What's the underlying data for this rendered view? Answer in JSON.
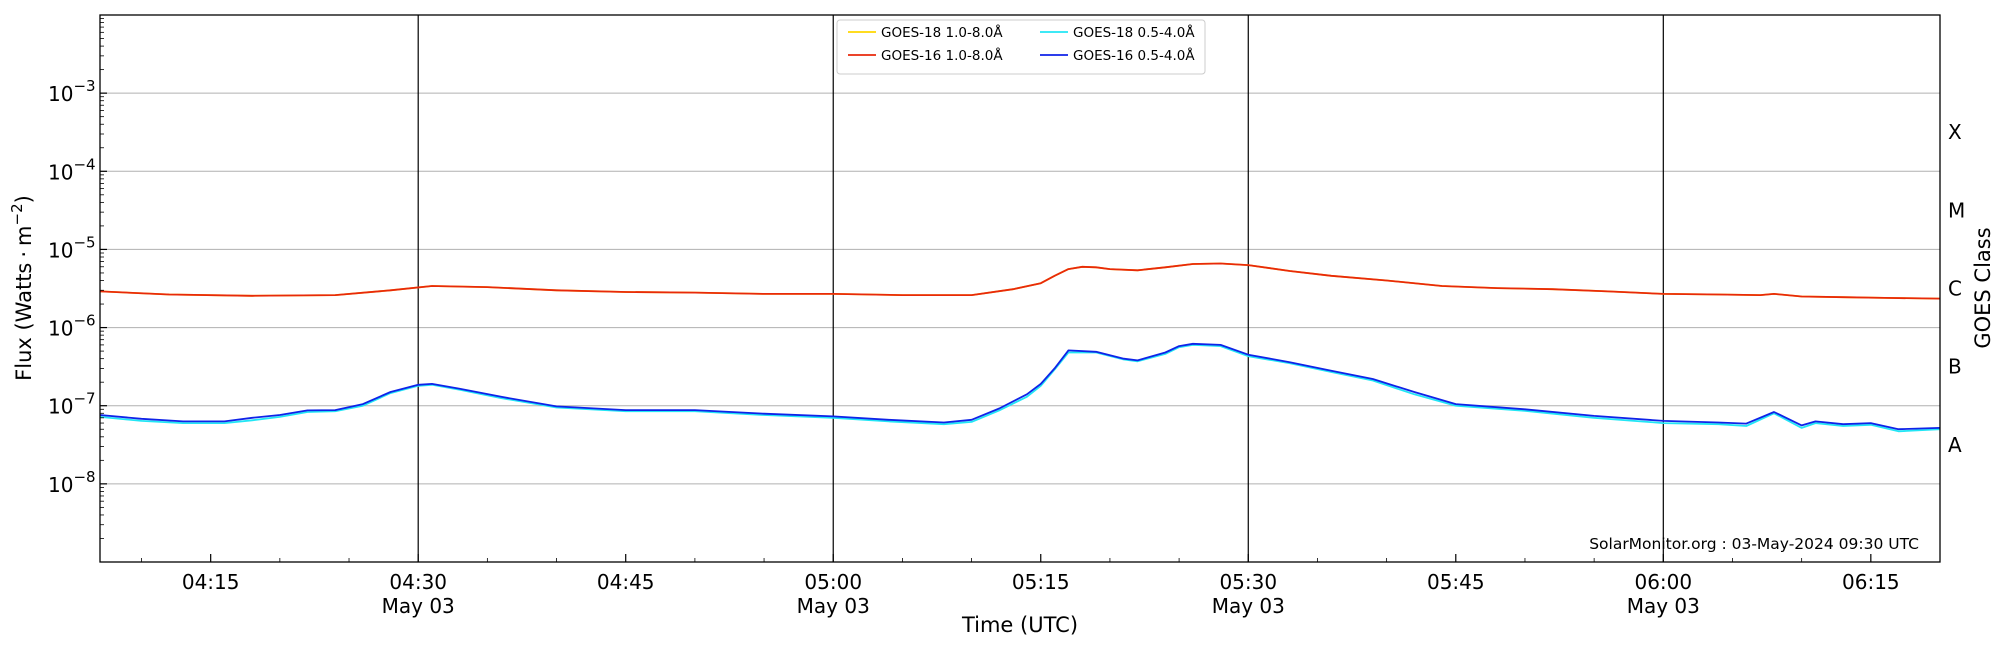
{
  "chart_data": {
    "type": "line",
    "title": "",
    "xlabel": "Time (UTC)",
    "ylabel_main": "Flux (Watts",
    "ylabel_unit": "m",
    "ylabel_exp": "−2",
    "ylabel_dot": "·",
    "y2label": "GOES Class",
    "y_scale": "log",
    "xlim": [
      "04:07",
      "06:20"
    ],
    "ylim": [
      1e-09,
      0.01
    ],
    "grid": "horizontal",
    "legend_position": "top-center",
    "watermark": "SolarMonitor.org : 03-May-2024 09:30 UTC",
    "x_ticks": [
      {
        "t": "04:15",
        "label": "04:15",
        "date": ""
      },
      {
        "t": "04:30",
        "label": "04:30",
        "date": "May 03"
      },
      {
        "t": "04:45",
        "label": "04:45",
        "date": ""
      },
      {
        "t": "05:00",
        "label": "05:00",
        "date": "May 03"
      },
      {
        "t": "05:15",
        "label": "05:15",
        "date": ""
      },
      {
        "t": "05:30",
        "label": "05:30",
        "date": "May 03"
      },
      {
        "t": "05:45",
        "label": "05:45",
        "date": ""
      },
      {
        "t": "06:00",
        "label": "06:00",
        "date": "May 03"
      },
      {
        "t": "06:15",
        "label": "06:15",
        "date": ""
      }
    ],
    "vlines": [
      "04:30",
      "05:00",
      "05:30",
      "06:00"
    ],
    "y_ticks": [
      {
        "exp": -8,
        "base": "10",
        "sup": "−8"
      },
      {
        "exp": -7,
        "base": "10",
        "sup": "−7"
      },
      {
        "exp": -6,
        "base": "10",
        "sup": "−6"
      },
      {
        "exp": -5,
        "base": "10",
        "sup": "−5"
      },
      {
        "exp": -4,
        "base": "10",
        "sup": "−4"
      },
      {
        "exp": -3,
        "base": "10",
        "sup": "−3"
      }
    ],
    "goes_classes": [
      {
        "label": "A",
        "exp": -7.5
      },
      {
        "label": "B",
        "exp": -6.5
      },
      {
        "label": "C",
        "exp": -5.5
      },
      {
        "label": "M",
        "exp": -4.5
      },
      {
        "label": "X",
        "exp": -3.5
      }
    ],
    "series": [
      {
        "name": "GOES-18 1.0-8.0Å",
        "color": "#ffd700",
        "x": [
          "04:07",
          "04:12",
          "04:18",
          "04:24",
          "04:28",
          "04:31",
          "04:35",
          "04:40",
          "04:45",
          "04:50",
          "04:55",
          "05:00",
          "05:05",
          "05:10",
          "05:13",
          "05:15",
          "05:16",
          "05:17",
          "05:18",
          "05:19",
          "05:20",
          "05:22",
          "05:24",
          "05:26",
          "05:28",
          "05:30",
          "05:33",
          "05:36",
          "05:40",
          "05:44",
          "05:48",
          "05:52",
          "05:56",
          "06:00",
          "06:04",
          "06:07",
          "06:08",
          "06:10",
          "06:13",
          "06:16",
          "06:20"
        ],
        "y": [
          2.9e-06,
          2.65e-06,
          2.55e-06,
          2.6e-06,
          3e-06,
          3.4e-06,
          3.3e-06,
          3e-06,
          2.85e-06,
          2.8e-06,
          2.7e-06,
          2.7e-06,
          2.6e-06,
          2.6e-06,
          3.1e-06,
          3.7e-06,
          4.6e-06,
          5.6e-06,
          6e-06,
          5.9e-06,
          5.6e-06,
          5.4e-06,
          5.9e-06,
          6.5e-06,
          6.6e-06,
          6.3e-06,
          5.3e-06,
          4.6e-06,
          4e-06,
          3.4e-06,
          3.2e-06,
          3.1e-06,
          2.9e-06,
          2.7e-06,
          2.65e-06,
          2.6e-06,
          2.7e-06,
          2.5e-06,
          2.45e-06,
          2.4e-06,
          2.35e-06
        ]
      },
      {
        "name": "GOES-16 1.0-8.0Å",
        "color": "#e8290b",
        "x": [
          "04:07",
          "04:12",
          "04:18",
          "04:24",
          "04:28",
          "04:31",
          "04:35",
          "04:40",
          "04:45",
          "04:50",
          "04:55",
          "05:00",
          "05:05",
          "05:10",
          "05:13",
          "05:15",
          "05:16",
          "05:17",
          "05:18",
          "05:19",
          "05:20",
          "05:22",
          "05:24",
          "05:26",
          "05:28",
          "05:30",
          "05:33",
          "05:36",
          "05:40",
          "05:44",
          "05:48",
          "05:52",
          "05:56",
          "06:00",
          "06:04",
          "06:07",
          "06:08",
          "06:10",
          "06:13",
          "06:16",
          "06:20"
        ],
        "y": [
          2.9e-06,
          2.65e-06,
          2.55e-06,
          2.6e-06,
          3e-06,
          3.4e-06,
          3.3e-06,
          3e-06,
          2.85e-06,
          2.8e-06,
          2.7e-06,
          2.7e-06,
          2.6e-06,
          2.6e-06,
          3.1e-06,
          3.7e-06,
          4.6e-06,
          5.6e-06,
          6e-06,
          5.9e-06,
          5.6e-06,
          5.4e-06,
          5.9e-06,
          6.5e-06,
          6.6e-06,
          6.3e-06,
          5.3e-06,
          4.6e-06,
          4e-06,
          3.4e-06,
          3.2e-06,
          3.1e-06,
          2.9e-06,
          2.7e-06,
          2.65e-06,
          2.6e-06,
          2.7e-06,
          2.5e-06,
          2.45e-06,
          2.4e-06,
          2.35e-06
        ]
      },
      {
        "name": "GOES-18 0.5-4.0Å",
        "color": "#22e6f5",
        "x": [
          "04:07",
          "04:10",
          "04:13",
          "04:16",
          "04:18",
          "04:20",
          "04:22",
          "04:24",
          "04:26",
          "04:28",
          "04:30",
          "04:31",
          "04:33",
          "04:36",
          "04:40",
          "04:45",
          "04:50",
          "04:55",
          "05:00",
          "05:04",
          "05:08",
          "05:10",
          "05:12",
          "05:14",
          "05:15",
          "05:16",
          "05:17",
          "05:19",
          "05:21",
          "05:22",
          "05:24",
          "05:25",
          "05:26",
          "05:28",
          "05:30",
          "05:33",
          "05:36",
          "05:39",
          "05:42",
          "05:45",
          "05:50",
          "05:55",
          "06:00",
          "06:04",
          "06:06",
          "06:08",
          "06:10",
          "06:11",
          "06:13",
          "06:15",
          "06:17",
          "06:20"
        ],
        "y": [
          7.2e-08,
          6.4e-08,
          6e-08,
          6e-08,
          6.5e-08,
          7.2e-08,
          8.3e-08,
          8.5e-08,
          1e-07,
          1.45e-07,
          1.8e-07,
          1.85e-07,
          1.6e-07,
          1.25e-07,
          9.5e-08,
          8.5e-08,
          8.5e-08,
          7.6e-08,
          7e-08,
          6.3e-08,
          5.8e-08,
          6.2e-08,
          8.7e-08,
          1.3e-07,
          1.8e-07,
          2.9e-07,
          4.8e-07,
          4.8e-07,
          3.9e-07,
          3.7e-07,
          4.6e-07,
          5.6e-07,
          6e-07,
          5.8e-07,
          4.3e-07,
          3.5e-07,
          2.7e-07,
          2.1e-07,
          1.4e-07,
          1e-07,
          8.6e-08,
          7e-08,
          6e-08,
          5.8e-08,
          5.5e-08,
          8e-08,
          5.2e-08,
          6e-08,
          5.5e-08,
          5.7e-08,
          4.7e-08,
          5e-08
        ]
      },
      {
        "name": "GOES-16 0.5-4.0Å",
        "color": "#0f23e8",
        "x": [
          "04:07",
          "04:10",
          "04:13",
          "04:16",
          "04:18",
          "04:20",
          "04:22",
          "04:24",
          "04:26",
          "04:28",
          "04:30",
          "04:31",
          "04:33",
          "04:36",
          "04:40",
          "04:45",
          "04:50",
          "04:55",
          "05:00",
          "05:04",
          "05:08",
          "05:10",
          "05:12",
          "05:14",
          "05:15",
          "05:16",
          "05:17",
          "05:19",
          "05:21",
          "05:22",
          "05:24",
          "05:25",
          "05:26",
          "05:28",
          "05:30",
          "05:33",
          "05:36",
          "05:39",
          "05:42",
          "05:45",
          "05:50",
          "05:55",
          "06:00",
          "06:04",
          "06:06",
          "06:08",
          "06:10",
          "06:11",
          "06:13",
          "06:15",
          "06:17",
          "06:20"
        ],
        "y": [
          7.6e-08,
          6.8e-08,
          6.3e-08,
          6.3e-08,
          7e-08,
          7.6e-08,
          8.7e-08,
          8.8e-08,
          1.05e-07,
          1.5e-07,
          1.85e-07,
          1.9e-07,
          1.65e-07,
          1.3e-07,
          9.8e-08,
          8.8e-08,
          8.8e-08,
          7.9e-08,
          7.3e-08,
          6.6e-08,
          6.1e-08,
          6.6e-08,
          9.2e-08,
          1.4e-07,
          1.9e-07,
          3e-07,
          5.1e-07,
          4.9e-07,
          4e-07,
          3.8e-07,
          4.8e-07,
          5.8e-07,
          6.2e-07,
          6e-07,
          4.5e-07,
          3.6e-07,
          2.8e-07,
          2.2e-07,
          1.5e-07,
          1.05e-07,
          9e-08,
          7.4e-08,
          6.4e-08,
          6.1e-08,
          5.9e-08,
          8.3e-08,
          5.6e-08,
          6.3e-08,
          5.8e-08,
          6e-08,
          5e-08,
          5.2e-08
        ]
      }
    ],
    "legend_order": [
      0,
      2,
      1,
      3
    ]
  }
}
